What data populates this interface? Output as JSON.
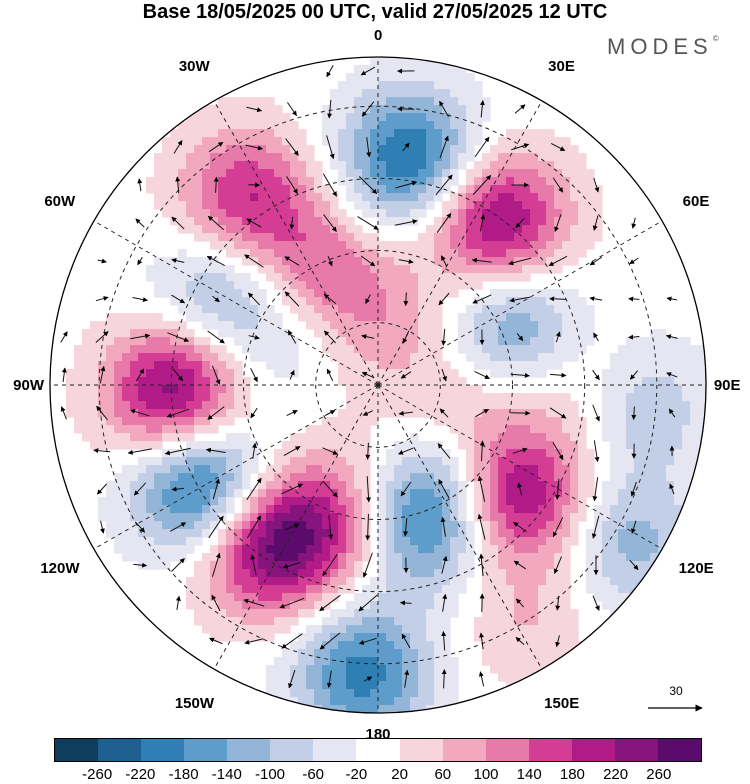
{
  "title": "Base 18/05/2025 00 UTC, valid 27/05/2025 12 UTC",
  "brand": "MODES",
  "brand_mark": "©",
  "longitude_labels": [
    "0",
    "30E",
    "60E",
    "90E",
    "120E",
    "150E",
    "180",
    "150W",
    "120W",
    "90W",
    "60W",
    "30W"
  ],
  "vector_reference": "30",
  "colorbar": {
    "colors": [
      "#0f3d5e",
      "#1d5f8f",
      "#2f7fb5",
      "#5e9ccb",
      "#93b6d8",
      "#c3cfe6",
      "#e6e6f2",
      "#ffffff",
      "#f7d5dd",
      "#f2a9c0",
      "#e87aa9",
      "#d53d95",
      "#b01b88",
      "#86147d",
      "#5a0b6c"
    ],
    "ticks": [
      "-260",
      "-220",
      "-180",
      "-140",
      "-100",
      "-60",
      "-20",
      "20",
      "60",
      "100",
      "140",
      "180",
      "220",
      "260"
    ]
  },
  "blobs": [
    {
      "lon": 8,
      "r": 0.7,
      "amp": -230
    },
    {
      "lon": 36,
      "r": 0.62,
      "amp": 240
    },
    {
      "lon": 68,
      "r": 0.45,
      "amp": -160
    },
    {
      "lon": 88,
      "r": 0.58,
      "amp": 60
    },
    {
      "lon": 95,
      "r": 0.82,
      "amp": -90
    },
    {
      "lon": 110,
      "r": 0.25,
      "amp": 100
    },
    {
      "lon": 128,
      "r": 0.55,
      "amp": 230
    },
    {
      "lon": 145,
      "r": 0.27,
      "amp": -130
    },
    {
      "lon": 162,
      "r": 0.45,
      "amp": -190
    },
    {
      "lon": 170,
      "r": 0.22,
      "amp": 60
    },
    {
      "lon": 122,
      "r": 0.9,
      "amp": -120
    },
    {
      "lon": 148,
      "r": 0.85,
      "amp": 60
    },
    {
      "lon": 183,
      "r": 0.88,
      "amp": -200
    },
    {
      "lon": 200,
      "r": 0.45,
      "amp": 150
    },
    {
      "lon": 215,
      "r": 0.6,
      "amp": 240
    },
    {
      "lon": 240,
      "r": 0.62,
      "amp": -250
    },
    {
      "lon": 268,
      "r": 0.62,
      "amp": 260
    },
    {
      "lon": 300,
      "r": 0.55,
      "amp": -130
    },
    {
      "lon": 325,
      "r": 0.7,
      "amp": 180
    },
    {
      "lon": 330,
      "r": 0.4,
      "amp": 130
    },
    {
      "lon": 0,
      "r": 0.2,
      "amp": 80
    },
    {
      "lon": 300,
      "r": 0.3,
      "amp": -60
    }
  ]
}
